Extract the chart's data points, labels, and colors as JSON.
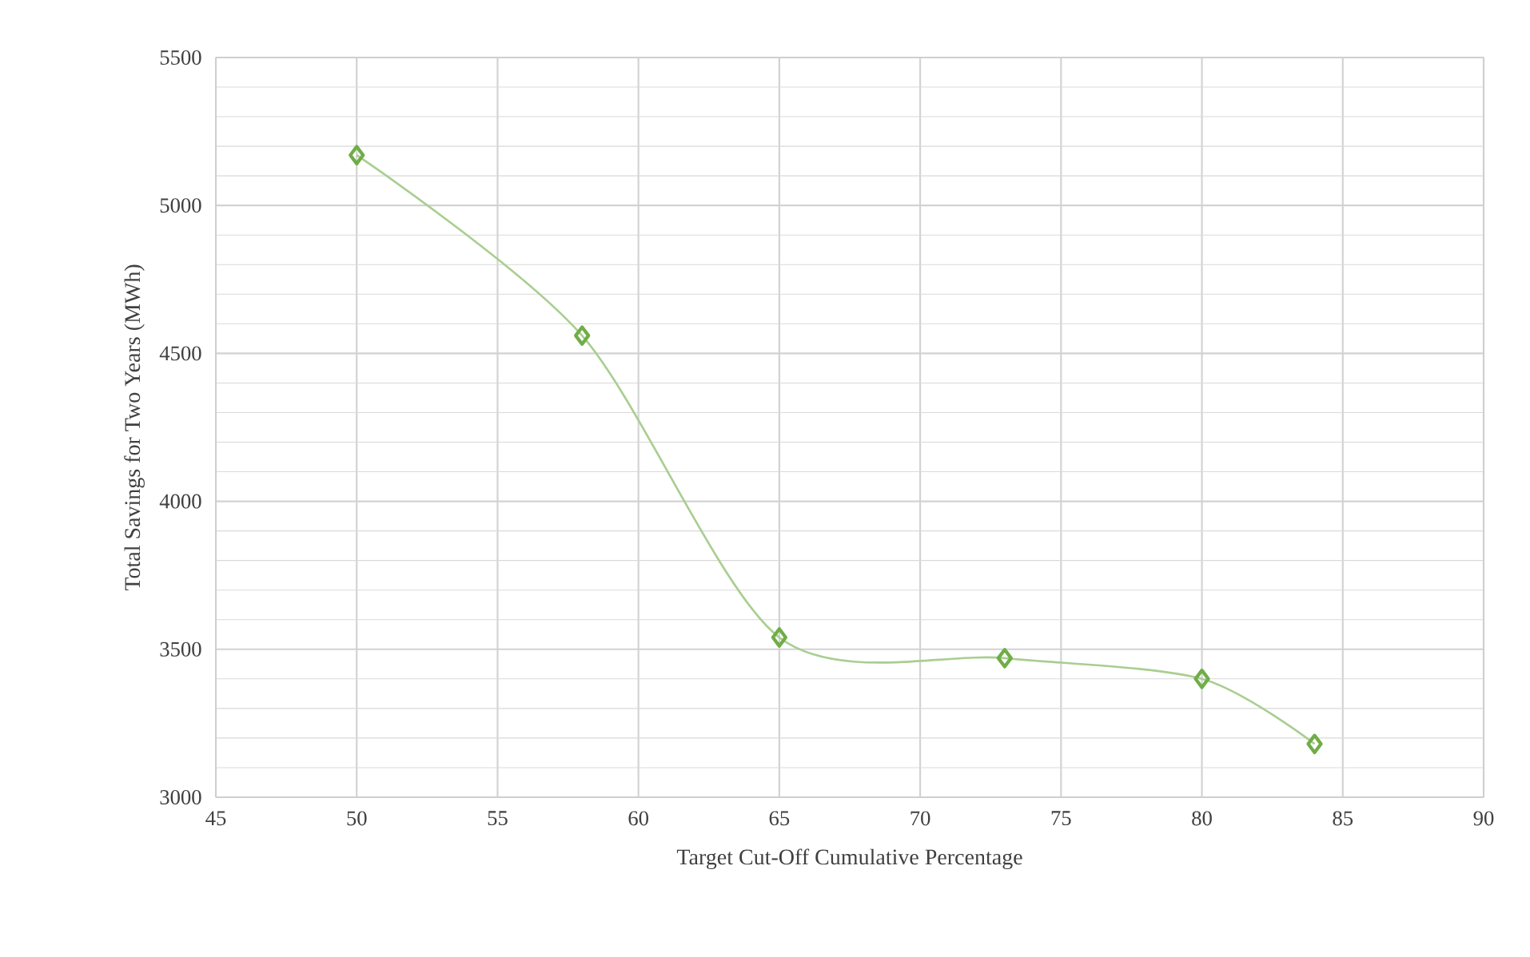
{
  "chart_data": {
    "type": "line",
    "xlabel": "Target Cut-Off Cumulative Percentage",
    "ylabel": "Total Savings for Two Years (MWh)",
    "x": [
      50,
      58,
      65,
      73,
      80,
      84
    ],
    "series": [
      {
        "color": "#70ad47",
        "values": [
          5170,
          4560,
          3540,
          3470,
          3400,
          3180
        ]
      }
    ],
    "xlim": [
      45,
      90
    ],
    "xticks": [
      45,
      50,
      55,
      60,
      65,
      70,
      75,
      80,
      85,
      90
    ],
    "ylim": [
      3000,
      5500
    ],
    "yticks": [
      3000,
      3500,
      4000,
      4500,
      5000,
      5500
    ],
    "grid": true,
    "marker": "diamond",
    "line_style": "solid"
  }
}
